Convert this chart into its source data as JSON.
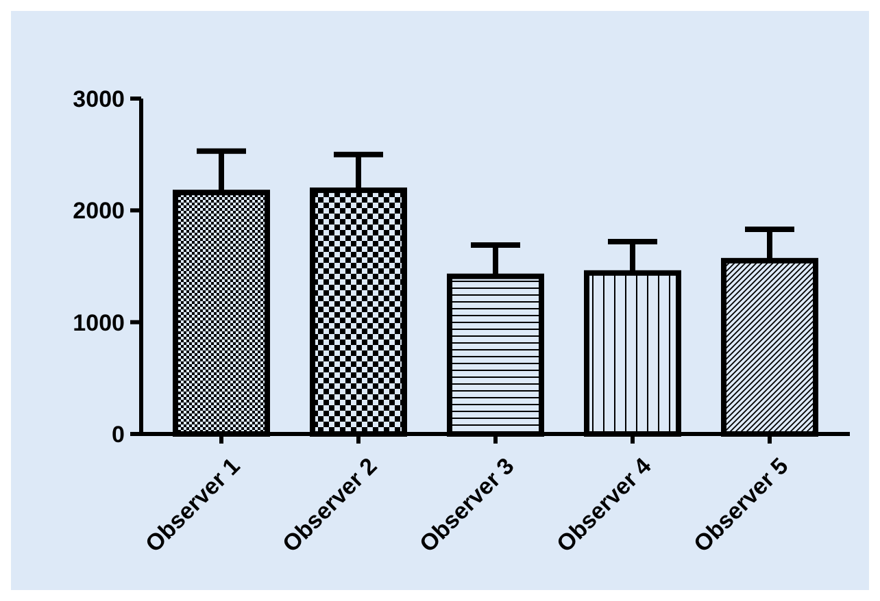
{
  "chart_data": {
    "type": "bar",
    "categories": [
      "Observer 1",
      "Observer 2",
      "Observer 3",
      "Observer 4",
      "Observer 5"
    ],
    "values": [
      2160,
      2180,
      1410,
      1440,
      1550
    ],
    "errors": [
      [
        2160,
        2530
      ],
      [
        2180,
        2500
      ],
      [
        1410,
        1690
      ],
      [
        1440,
        1720
      ],
      [
        1550,
        1830
      ]
    ],
    "color": "#000000",
    "ylim": [
      0,
      3000
    ],
    "yticks": [
      0,
      1000,
      2000,
      3000
    ],
    "grid": false
  }
}
